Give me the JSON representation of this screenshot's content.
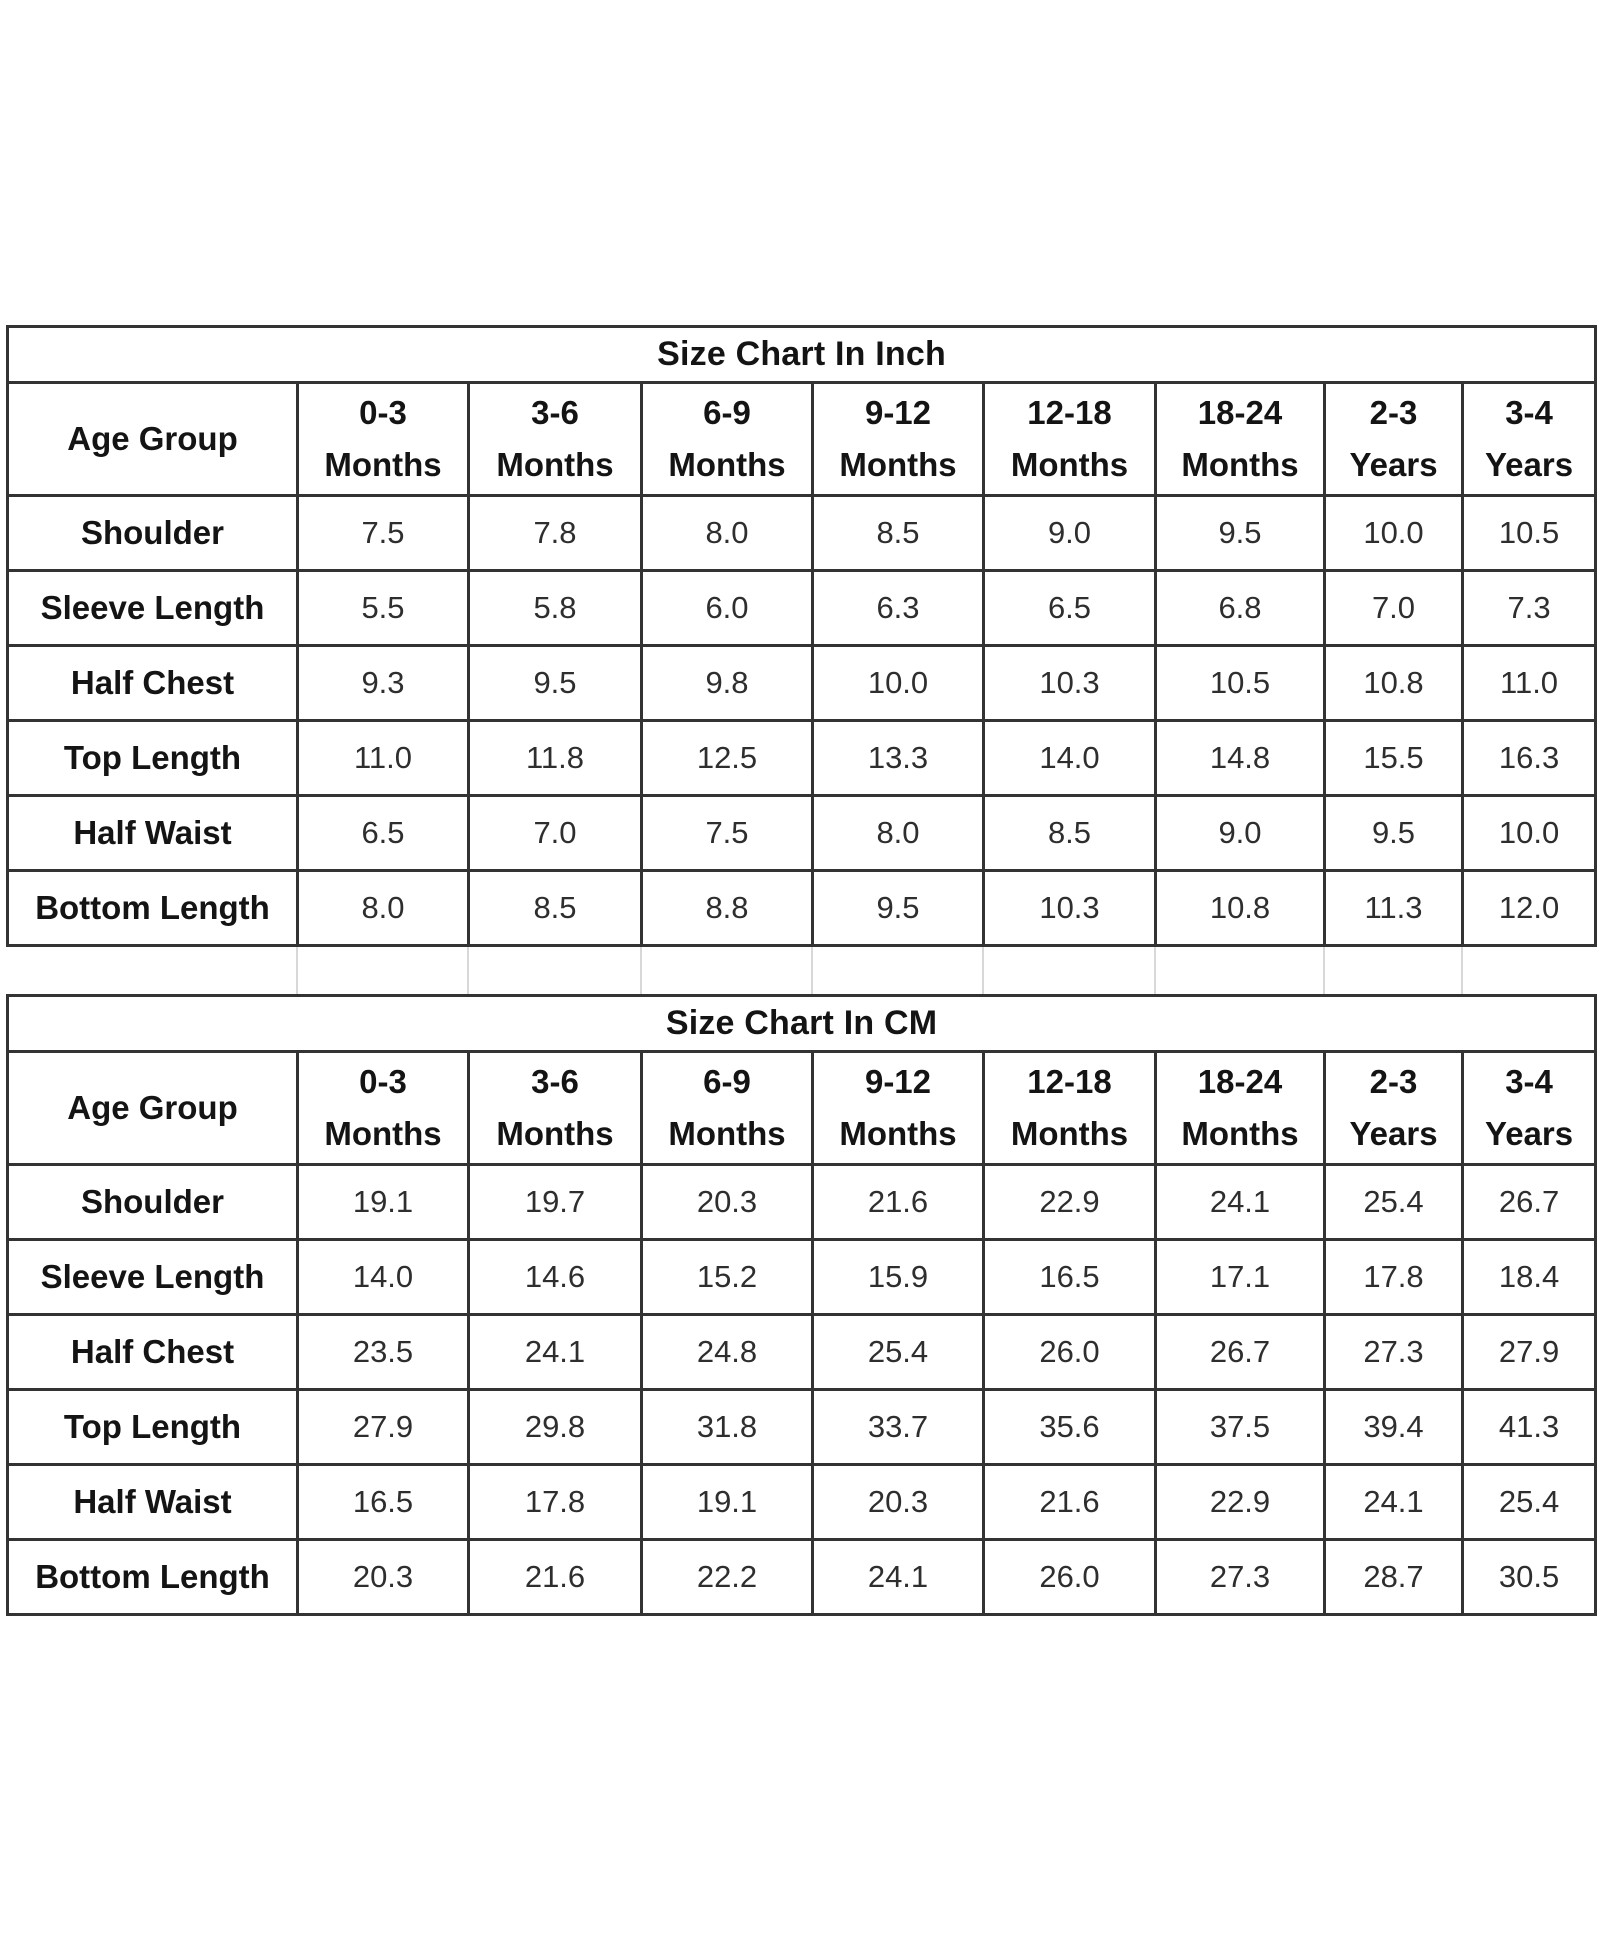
{
  "colors": {
    "background": "#ffffff",
    "border": "#333333",
    "label_text": "#141414",
    "value_text": "#2e2e2e",
    "gap_line": "#d8d8d8"
  },
  "chart_data": [
    {
      "type": "table",
      "title": "Size Chart In Inch",
      "corner_label": "Age Group",
      "columns": [
        {
          "range": "0-3",
          "unit": "Months"
        },
        {
          "range": "3-6",
          "unit": "Months"
        },
        {
          "range": "6-9",
          "unit": "Months"
        },
        {
          "range": "9-12",
          "unit": "Months"
        },
        {
          "range": "12-18",
          "unit": "Months"
        },
        {
          "range": "18-24",
          "unit": "Months"
        },
        {
          "range": "2-3",
          "unit": "Years"
        },
        {
          "range": "3-4",
          "unit": "Years"
        }
      ],
      "rows": [
        {
          "label": "Shoulder",
          "values": [
            "7.5",
            "7.8",
            "8.0",
            "8.5",
            "9.0",
            "9.5",
            "10.0",
            "10.5"
          ]
        },
        {
          "label": "Sleeve Length",
          "values": [
            "5.5",
            "5.8",
            "6.0",
            "6.3",
            "6.5",
            "6.8",
            "7.0",
            "7.3"
          ]
        },
        {
          "label": "Half Chest",
          "values": [
            "9.3",
            "9.5",
            "9.8",
            "10.0",
            "10.3",
            "10.5",
            "10.8",
            "11.0"
          ]
        },
        {
          "label": "Top Length",
          "values": [
            "11.0",
            "11.8",
            "12.5",
            "13.3",
            "14.0",
            "14.8",
            "15.5",
            "16.3"
          ]
        },
        {
          "label": "Half Waist",
          "values": [
            "6.5",
            "7.0",
            "7.5",
            "8.0",
            "8.5",
            "9.0",
            "9.5",
            "10.0"
          ]
        },
        {
          "label": "Bottom Length",
          "values": [
            "8.0",
            "8.5",
            "8.8",
            "9.5",
            "10.3",
            "10.8",
            "11.3",
            "12.0"
          ]
        }
      ]
    },
    {
      "type": "table",
      "title": "Size Chart In CM",
      "corner_label": "Age Group",
      "columns": [
        {
          "range": "0-3",
          "unit": "Months"
        },
        {
          "range": "3-6",
          "unit": "Months"
        },
        {
          "range": "6-9",
          "unit": "Months"
        },
        {
          "range": "9-12",
          "unit": "Months"
        },
        {
          "range": "12-18",
          "unit": "Months"
        },
        {
          "range": "18-24",
          "unit": "Months"
        },
        {
          "range": "2-3",
          "unit": "Years"
        },
        {
          "range": "3-4",
          "unit": "Years"
        }
      ],
      "rows": [
        {
          "label": "Shoulder",
          "values": [
            "19.1",
            "19.7",
            "20.3",
            "21.6",
            "22.9",
            "24.1",
            "25.4",
            "26.7"
          ]
        },
        {
          "label": "Sleeve Length",
          "values": [
            "14.0",
            "14.6",
            "15.2",
            "15.9",
            "16.5",
            "17.1",
            "17.8",
            "18.4"
          ]
        },
        {
          "label": "Half Chest",
          "values": [
            "23.5",
            "24.1",
            "24.8",
            "25.4",
            "26.0",
            "26.7",
            "27.3",
            "27.9"
          ]
        },
        {
          "label": "Top Length",
          "values": [
            "27.9",
            "29.8",
            "31.8",
            "33.7",
            "35.6",
            "37.5",
            "39.4",
            "41.3"
          ]
        },
        {
          "label": "Half Waist",
          "values": [
            "16.5",
            "17.8",
            "19.1",
            "20.3",
            "21.6",
            "22.9",
            "24.1",
            "25.4"
          ]
        },
        {
          "label": "Bottom Length",
          "values": [
            "20.3",
            "21.6",
            "22.2",
            "24.1",
            "26.0",
            "27.3",
            "28.7",
            "30.5"
          ]
        }
      ]
    }
  ]
}
